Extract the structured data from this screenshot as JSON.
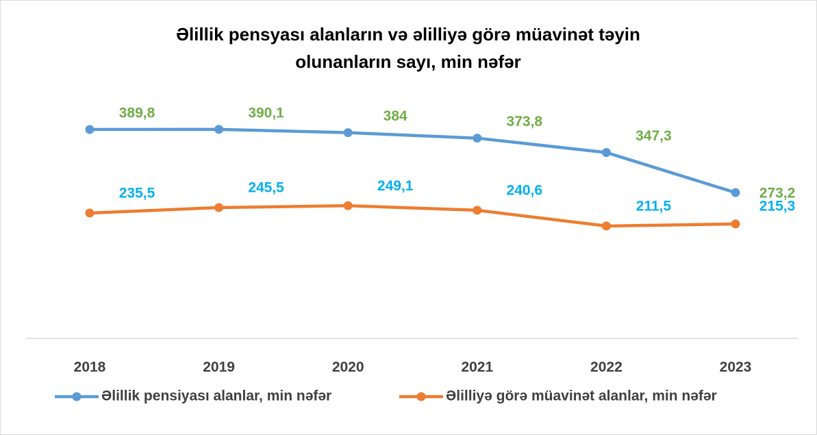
{
  "chart_data": {
    "type": "line",
    "title": "Əlillik pensyası alanların və əlilliyə görə müavinət təyin olunanların sayı, min nəfər",
    "categories": [
      "2018",
      "2019",
      "2020",
      "2021",
      "2022",
      "2023"
    ],
    "series": [
      {
        "name": "Əlillik pensiyası alanlar, min nəfər",
        "color": "#5b9bd5",
        "label_color": "#70ad47",
        "values": [
          389.8,
          390.1,
          384,
          373.8,
          347.3,
          273.2
        ],
        "value_labels": [
          "389,8",
          "390,1",
          "384",
          "373,8",
          "347,3",
          "273,2"
        ]
      },
      {
        "name": "Əlilliyə görə müavinət alanlar, min nəfər",
        "color": "#ed7d31",
        "label_color": "#00b0f0",
        "values": [
          235.5,
          245.5,
          249.1,
          240.6,
          211.5,
          215.3
        ],
        "value_labels": [
          "235,5",
          "245,5",
          "249,1",
          "240,6",
          "211,5",
          "215,3"
        ]
      }
    ],
    "ylim": [
      0,
      450
    ],
    "legend": "bottom"
  }
}
